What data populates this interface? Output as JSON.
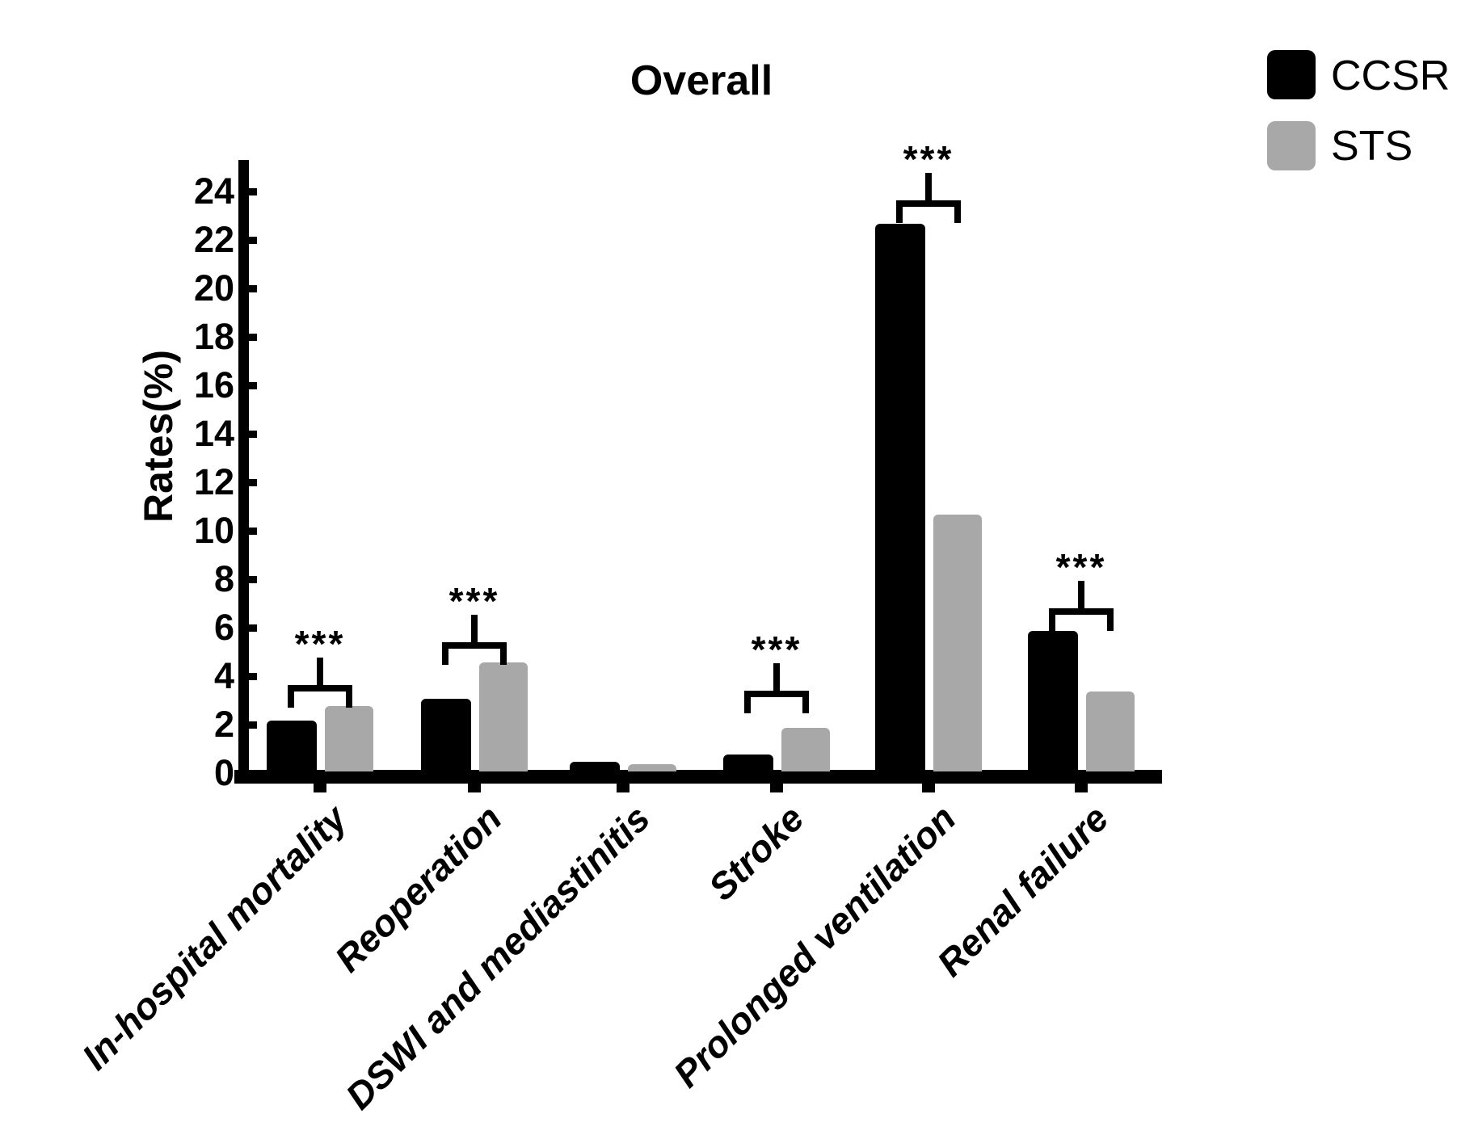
{
  "title": "Overall",
  "legend": {
    "items": [
      {
        "label": "CCSR",
        "color": "#000000"
      },
      {
        "label": "STS",
        "color": "#a8a8a8"
      }
    ]
  },
  "chart_data": {
    "type": "bar",
    "title": "Overall",
    "xlabel": "",
    "ylabel": "Rates(%)",
    "ylim": [
      0,
      24
    ],
    "ytick_step": 2,
    "grid": false,
    "legend_position": "top-right",
    "categories": [
      "In-hospital mortality",
      "Reoperation",
      "DSWI and mediastinitis",
      "Stroke",
      "Prolonged ventilation",
      "Renal failure"
    ],
    "series": [
      {
        "name": "CCSR",
        "color": "#000000",
        "values": [
          2.0,
          2.9,
          0.3,
          0.6,
          22.5,
          5.7
        ]
      },
      {
        "name": "STS",
        "color": "#a8a8a8",
        "values": [
          2.6,
          4.4,
          0.2,
          1.7,
          10.5,
          3.2
        ]
      }
    ],
    "significance": [
      "***",
      "***",
      null,
      "***",
      "***",
      "***"
    ]
  }
}
